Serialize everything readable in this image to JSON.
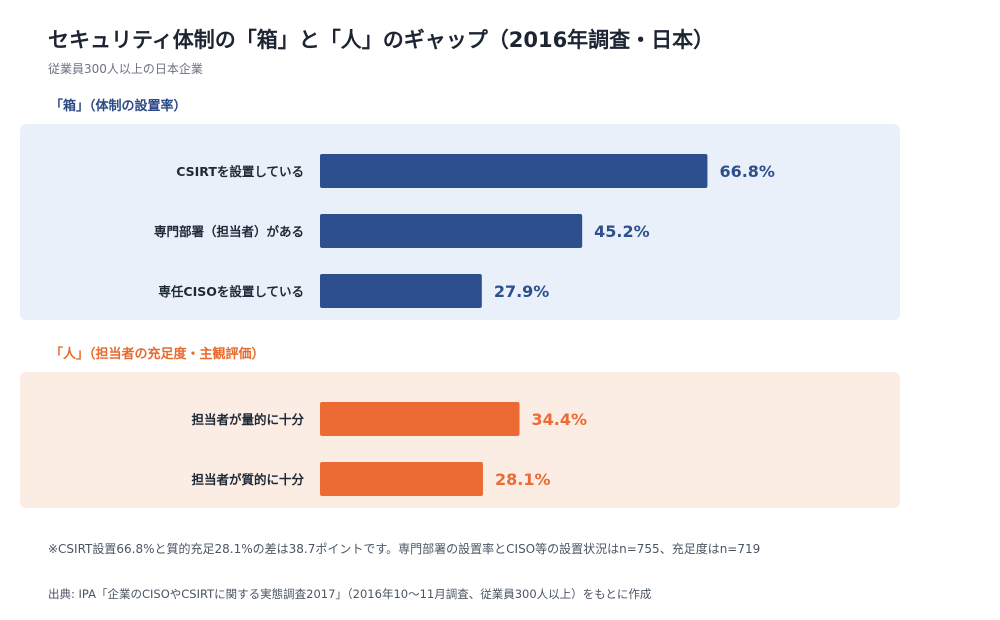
{
  "title": "セキュリティ体制の「箱」と「人」のギャップ（2016年調査・日本）",
  "subtitle": "従業員300人以上の日本企業",
  "colors": {
    "blue": "#2d4f8e",
    "orange": "#ec6b35",
    "blue_bg": "#e9f0fa",
    "orange_bg": "#fbece4"
  },
  "chart_data": [
    {
      "type": "bar",
      "orientation": "horizontal",
      "title": "「箱」（体制の設置率）",
      "categories": [
        "CSIRTを設置している",
        "専門部署（担当者）がある",
        "専任CISOを設置している"
      ],
      "values": [
        66.8,
        45.2,
        27.9
      ],
      "value_labels": [
        "66.8%",
        "45.2%",
        "27.9%"
      ],
      "unit": "%",
      "xlim": [
        0,
        100
      ],
      "color": "#2d4f8e",
      "grid": false
    },
    {
      "type": "bar",
      "orientation": "horizontal",
      "title": "「人」（担当者の充足度・主観評価）",
      "categories": [
        "担当者が量的に十分",
        "担当者が質的に十分"
      ],
      "values": [
        34.4,
        28.1
      ],
      "value_labels": [
        "34.4%",
        "28.1%"
      ],
      "unit": "%",
      "xlim": [
        0,
        100
      ],
      "color": "#ec6b35",
      "grid": false
    }
  ],
  "footnote": "※CSIRT設置66.8%と質的充足28.1%の差は38.7ポイントです。専門部署の設置率とCISO等の設置状況はn=755、充足度はn=719",
  "source": "出典: IPA「企業のCISOやCSIRTに関する実態調査2017」（2016年10〜11月調査、従業員300人以上）をもとに作成"
}
